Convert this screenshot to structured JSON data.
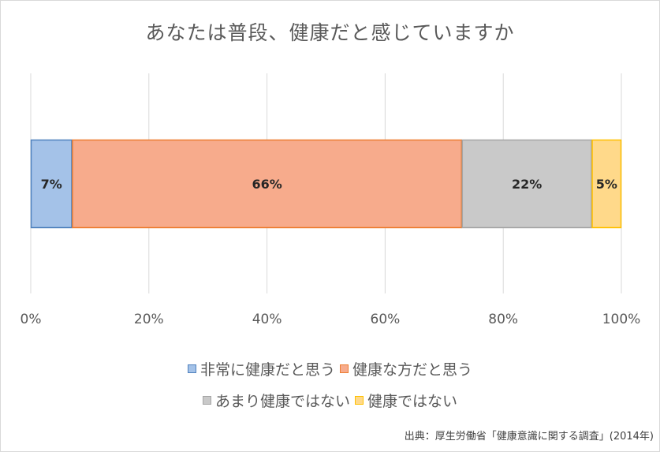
{
  "chart_data": {
    "type": "bar",
    "orientation": "horizontal",
    "stacked": true,
    "title": "あなたは普段、健康だと感じていますか",
    "categories": [
      ""
    ],
    "series": [
      {
        "name": "非常に健康だと思う",
        "values": [
          7
        ],
        "label": "7%",
        "color": "#a4c2e8",
        "edge": "#4f81bd"
      },
      {
        "name": "健康な方だと思う",
        "values": [
          66
        ],
        "label": "66%",
        "color": "#f7ab8c",
        "edge": "#ed7d31"
      },
      {
        "name": "あまり健康ではない",
        "values": [
          22
        ],
        "label": "22%",
        "color": "#c9c9c9",
        "edge": "#a5a5a5"
      },
      {
        "name": "健康ではない",
        "values": [
          5
        ],
        "label": "5%",
        "color": "#ffd98a",
        "edge": "#ffc000"
      }
    ],
    "xlim": [
      0,
      100
    ],
    "x_ticks": [
      "0%",
      "20%",
      "40%",
      "60%",
      "80%",
      "100%"
    ],
    "grid": true,
    "legend_position": "bottom"
  },
  "source": "出典：厚生労働省「健康意識に関する調査」(2014年)"
}
